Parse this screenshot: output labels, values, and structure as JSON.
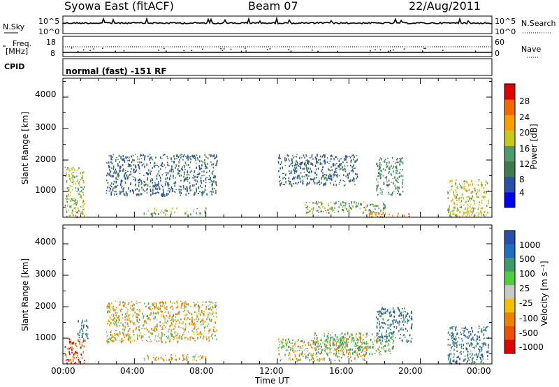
{
  "header": {
    "station": "Syowa East (fitACF)",
    "beam": "Beam 07",
    "date": "22/Aug/2011"
  },
  "noise_panel": {
    "left_label": "N.Sky",
    "right_label": "N.Search",
    "left_ticks": [
      "10^5",
      "10^0"
    ],
    "right_ticks": [
      "10^5",
      "10^0"
    ]
  },
  "freq_panel": {
    "left_label_1": "Freq.",
    "left_label_2": "[MHz]",
    "right_label": "Nave",
    "left_ticks": [
      "18",
      "8"
    ],
    "right_ticks": [
      "60",
      "0"
    ]
  },
  "cpid": {
    "label": "CPID",
    "mode": "normal (fast) -151 RF"
  },
  "x_axis": {
    "label": "Time UT",
    "ticks": [
      "00:00",
      "04:00",
      "08:00",
      "12:00",
      "16:00",
      "20:00",
      "00:00"
    ]
  },
  "power_panel": {
    "ylabel": "Slant Range [km]",
    "yticks": [
      "4000",
      "3000",
      "2000",
      "1000"
    ],
    "colorbar_label": "Power [dB]",
    "colorbar_ticks": [
      "28",
      "24",
      "20",
      "16",
      "12",
      "8",
      "4"
    ]
  },
  "velocity_panel": {
    "ylabel": "Slant Range [km]",
    "yticks": [
      "4000",
      "3000",
      "2000",
      "1000"
    ],
    "colorbar_label": "Velocity [m s⁻¹]",
    "colorbar_ticks": [
      "1000",
      "500",
      "100",
      "25",
      "-25",
      "-100",
      "-500",
      "-1000"
    ]
  },
  "colors": {
    "power_scale": [
      "#0000ff",
      "#2a4fa8",
      "#3f7a4f",
      "#4f9a6f",
      "#c8c81a",
      "#f7a000",
      "#ef6a00",
      "#e00000"
    ],
    "velocity_scale": [
      "#2a4fa8",
      "#1f6fbf",
      "#3f9a6a",
      "#4fcf3f",
      "#c8c8c8",
      "#f5c000",
      "#ef8000",
      "#ef5000",
      "#e00000"
    ]
  },
  "chart_data": [
    {
      "type": "heatmap",
      "title": "Power",
      "xlabel": "Time UT",
      "ylabel": "Slant Range [km]",
      "xlim": [
        0,
        24
      ],
      "ylim": [
        180,
        4600
      ],
      "colorbar": {
        "label": "Power [dB]",
        "range": [
          0,
          32
        ],
        "ticks": [
          4,
          8,
          12,
          16,
          20,
          24,
          28
        ]
      },
      "regions": [
        {
          "t": [
            0.1,
            1.2
          ],
          "range": [
            200,
            1800
          ],
          "level": 16
        },
        {
          "t": [
            0.6,
            1.1
          ],
          "range": [
            200,
            400
          ],
          "level": 26
        },
        {
          "t": [
            2.4,
            8.6
          ],
          "range": [
            900,
            2200
          ],
          "level": 8
        },
        {
          "t": [
            4.5,
            8.0
          ],
          "range": [
            300,
            500
          ],
          "level": 16
        },
        {
          "t": [
            12.0,
            16.5
          ],
          "range": [
            1200,
            2200
          ],
          "level": 8
        },
        {
          "t": [
            13.5,
            18.0
          ],
          "range": [
            350,
            700
          ],
          "level": 14
        },
        {
          "t": [
            17.0,
            19.5
          ],
          "range": [
            200,
            350
          ],
          "level": 24
        },
        {
          "t": [
            17.5,
            19.0
          ],
          "range": [
            900,
            2100
          ],
          "level": 12
        },
        {
          "t": [
            21.5,
            23.8
          ],
          "range": [
            200,
            1400
          ],
          "level": 18
        }
      ]
    },
    {
      "type": "heatmap",
      "title": "Velocity",
      "xlabel": "Time UT",
      "ylabel": "Slant Range [km]",
      "xlim": [
        0,
        24
      ],
      "ylim": [
        180,
        4600
      ],
      "colorbar": {
        "label": "Velocity [m s⁻¹]",
        "range": [
          -1000,
          1000
        ],
        "ticks": [
          1000,
          500,
          100,
          25,
          -25,
          -100,
          -500,
          -1000
        ]
      },
      "regions": [
        {
          "t": [
            0.1,
            1.2
          ],
          "range": [
            200,
            1000
          ],
          "level": -500
        },
        {
          "t": [
            0.8,
            1.4
          ],
          "range": [
            800,
            1600
          ],
          "level": 500
        },
        {
          "t": [
            2.4,
            8.6
          ],
          "range": [
            900,
            2200
          ],
          "level": -100
        },
        {
          "t": [
            4.5,
            8.0
          ],
          "range": [
            300,
            500
          ],
          "level": -100
        },
        {
          "t": [
            12.0,
            17.0
          ],
          "range": [
            300,
            1000
          ],
          "level": 0
        },
        {
          "t": [
            14.0,
            18.5
          ],
          "range": [
            500,
            1200
          ],
          "level": 100
        },
        {
          "t": [
            17.5,
            19.5
          ],
          "range": [
            900,
            2000
          ],
          "level": 500
        },
        {
          "t": [
            21.5,
            23.8
          ],
          "range": [
            200,
            1400
          ],
          "level": 500
        }
      ]
    }
  ]
}
